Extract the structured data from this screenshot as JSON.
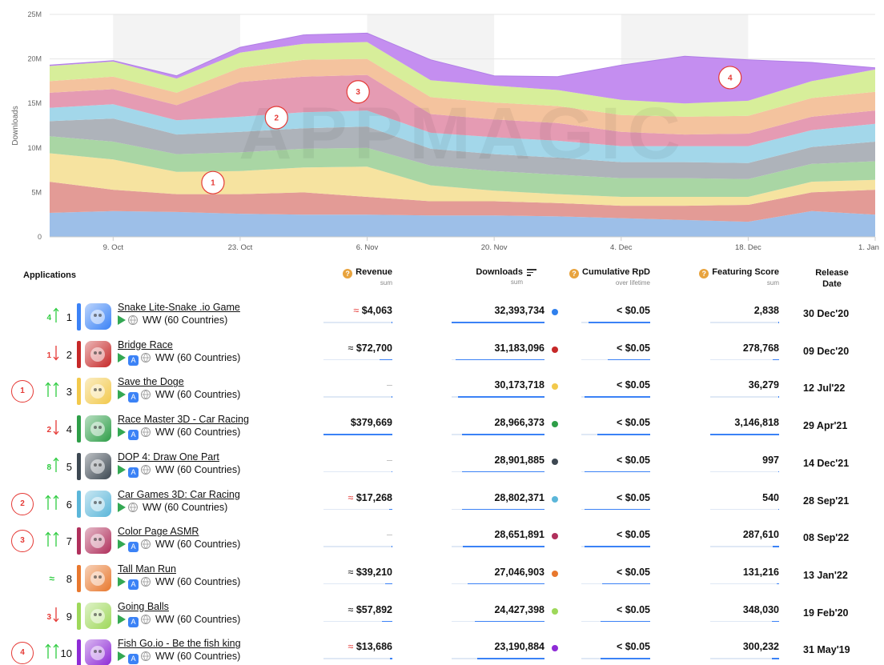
{
  "chart_data": {
    "type": "area",
    "ylabel": "Downloads",
    "y_ticks": [
      "0",
      "5M",
      "10M",
      "15M",
      "20M",
      "25M"
    ],
    "ylim": [
      0,
      25
    ],
    "x_tick_labels": [
      "9. Oct",
      "23. Oct",
      "6. Nov",
      "20. Nov",
      "4. Dec",
      "18. Dec",
      "1. Jan"
    ],
    "x_points": [
      "2 Oct",
      "9 Oct",
      "16 Oct",
      "23 Oct",
      "30 Oct",
      "6 Nov",
      "13 Nov",
      "20 Nov",
      "27 Nov",
      "4 Dec",
      "11 Dec",
      "18 Dec",
      "25 Dec",
      "1 Jan"
    ],
    "stacked": true,
    "series": [
      {
        "color": "#9dbfe8",
        "values": [
          2.7,
          2.9,
          2.8,
          2.6,
          2.5,
          2.5,
          2.4,
          2.4,
          2.3,
          2.1,
          1.9,
          1.7,
          2.9,
          2.5
        ]
      },
      {
        "color": "#e39b96",
        "values": [
          3.5,
          2.4,
          2.0,
          2.2,
          2.5,
          2.0,
          1.6,
          1.6,
          1.5,
          1.4,
          1.6,
          1.9,
          2.1,
          2.8
        ]
      },
      {
        "color": "#f6e3a0",
        "values": [
          3.2,
          3.4,
          2.5,
          2.6,
          2.8,
          3.4,
          1.8,
          1.2,
          1.0,
          1.0,
          1.0,
          0.9,
          1.2,
          1.1
        ]
      },
      {
        "color": "#a9d6a4",
        "values": [
          1.9,
          2.0,
          2.0,
          2.1,
          2.1,
          2.1,
          2.2,
          2.2,
          2.2,
          2.1,
          2.1,
          2.0,
          2.0,
          2.1
        ]
      },
      {
        "color": "#aeb3ba",
        "values": [
          1.7,
          2.6,
          2.2,
          2.3,
          2.3,
          2.4,
          1.9,
          1.9,
          1.9,
          1.8,
          1.8,
          1.8,
          1.9,
          2.2
        ]
      },
      {
        "color": "#a3d7ea",
        "values": [
          1.5,
          1.6,
          1.6,
          1.7,
          1.8,
          1.8,
          1.8,
          1.9,
          1.9,
          1.8,
          1.8,
          1.9,
          1.9,
          2.0
        ]
      },
      {
        "color": "#e59bb3",
        "values": [
          1.7,
          1.7,
          1.7,
          3.9,
          4.0,
          4.0,
          2.1,
          2.0,
          2.0,
          1.6,
          1.3,
          1.4,
          1.5,
          1.5
        ]
      },
      {
        "color": "#f4c39e",
        "values": [
          1.3,
          1.4,
          1.4,
          1.6,
          1.9,
          1.8,
          1.9,
          1.9,
          1.9,
          1.9,
          2.0,
          2.0,
          2.1,
          2.1
        ]
      },
      {
        "color": "#d7ee9a",
        "values": [
          1.7,
          1.7,
          1.6,
          1.7,
          1.8,
          1.9,
          1.9,
          1.9,
          1.8,
          1.7,
          1.5,
          1.7,
          1.9,
          2.5
        ]
      },
      {
        "color": "#c48ef0",
        "values": [
          0.1,
          0.1,
          0.3,
          0.6,
          1.0,
          1.0,
          2.3,
          1.1,
          1.5,
          3.9,
          5.3,
          4.6,
          2.1,
          0.2
        ]
      }
    ],
    "markers": [
      {
        "label": "1",
        "x": "20 Oct",
        "y": 6.1
      },
      {
        "label": "2",
        "x": "27 Oct",
        "y": 13.4
      },
      {
        "label": "3",
        "x": "5 Nov",
        "y": 16.3
      },
      {
        "label": "4",
        "x": "16 Dec",
        "y": 17.9
      }
    ],
    "watermark": "APPMAGIC"
  },
  "table": {
    "headers": {
      "applications": "Applications",
      "revenue": "Revenue",
      "revenue_sub": "sum",
      "downloads": "Downloads",
      "downloads_sub": "sum",
      "rpd": "Cumulative RpD",
      "rpd_sub": "over lifetime",
      "featuring": "Featuring Score",
      "featuring_sub": "sum",
      "release": "Release Date"
    },
    "help_glyph": "?",
    "rows": [
      {
        "marker": "",
        "delta": "4",
        "delta_dir": "up",
        "rank": "1",
        "color": "#3b82f6",
        "name": "Snake Lite-Snake .io Game",
        "stores": [
          "google-play"
        ],
        "region": "WW (60 Countries)",
        "revenue_prefix": "≈",
        "revenue": "$4,063",
        "revenue_estimated": true,
        "revenue_fill": 0.01,
        "downloads": "32,393,734",
        "downloads_fill": 1.0,
        "dot_color": "#2f80ed",
        "rpd": "< $0.05",
        "rpd_fill": 0.9,
        "featuring": "2,838",
        "featuring_fill": 0.01,
        "release": "30 Dec'20"
      },
      {
        "marker": "",
        "delta": "1",
        "delta_dir": "down",
        "rank": "2",
        "color": "#c62828",
        "name": "Bridge Race",
        "stores": [
          "google-play",
          "app-store"
        ],
        "region": "WW (60 Countries)",
        "revenue_prefix": "≈",
        "revenue": "$72,700",
        "revenue_estimated": false,
        "revenue_fill": 0.19,
        "downloads": "31,183,096",
        "downloads_fill": 0.96,
        "dot_color": "#c62828",
        "rpd": "< $0.05",
        "rpd_fill": 0.62,
        "featuring": "278,768",
        "featuring_fill": 0.09,
        "release": "09 Dec'20"
      },
      {
        "marker": "1",
        "delta": "",
        "delta_dir": "up",
        "rank": "3",
        "color": "#f2c94c",
        "name": "Save the Doge",
        "stores": [
          "google-play",
          "app-store"
        ],
        "region": "WW (60 Countries)",
        "revenue_prefix": "",
        "revenue": "–",
        "revenue_estimated": false,
        "revenue_fill": 0,
        "downloads": "30,173,718",
        "downloads_fill": 0.93,
        "dot_color": "#f2c94c",
        "rpd": "< $0.05",
        "rpd_fill": 0.95,
        "featuring": "36,279",
        "featuring_fill": 0.01,
        "release": "12 Jul'22"
      },
      {
        "marker": "",
        "delta": "2",
        "delta_dir": "down",
        "rank": "4",
        "color": "#2e9e48",
        "name": "Race Master 3D - Car Racing",
        "stores": [
          "google-play",
          "app-store"
        ],
        "region": "WW (60 Countries)",
        "revenue_prefix": "",
        "revenue": "$379,669",
        "revenue_estimated": false,
        "revenue_fill": 1.0,
        "downloads": "28,966,373",
        "downloads_fill": 0.89,
        "dot_color": "#2e9e48",
        "rpd": "< $0.05",
        "rpd_fill": 0.77,
        "featuring": "3,146,818",
        "featuring_fill": 1.0,
        "release": "29 Apr'21"
      },
      {
        "marker": "",
        "delta": "8",
        "delta_dir": "up",
        "rank": "5",
        "color": "#3d4852",
        "name": "DOP 4: Draw One Part",
        "stores": [
          "google-play",
          "app-store"
        ],
        "region": "WW (60 Countries)",
        "revenue_prefix": "",
        "revenue": "–",
        "revenue_estimated": false,
        "revenue_fill": 0,
        "downloads": "28,901,885",
        "downloads_fill": 0.89,
        "dot_color": "#3d4852",
        "rpd": "< $0.05",
        "rpd_fill": 0.95,
        "featuring": "997",
        "featuring_fill": 0.005,
        "release": "14 Dec'21"
      },
      {
        "marker": "2",
        "delta": "",
        "delta_dir": "up",
        "rank": "6",
        "color": "#5bb6d9",
        "name": "Car Games 3D: Car Racing",
        "stores": [
          "google-play"
        ],
        "region": "WW (60 Countries)",
        "revenue_prefix": "≈",
        "revenue": "$17,268",
        "revenue_estimated": true,
        "revenue_fill": 0.05,
        "downloads": "28,802,371",
        "downloads_fill": 0.89,
        "dot_color": "#5bb6d9",
        "rpd": "< $0.05",
        "rpd_fill": 0.95,
        "featuring": "540",
        "featuring_fill": 0.005,
        "release": "28 Sep'21"
      },
      {
        "marker": "3",
        "delta": "",
        "delta_dir": "up",
        "rank": "7",
        "color": "#b0305c",
        "name": "Color Page ASMR",
        "stores": [
          "google-play",
          "app-store"
        ],
        "region": "WW (60 Countries)",
        "revenue_prefix": "",
        "revenue": "–",
        "revenue_estimated": false,
        "revenue_fill": 0,
        "downloads": "28,651,891",
        "downloads_fill": 0.88,
        "dot_color": "#b0305c",
        "rpd": "< $0.05",
        "rpd_fill": 0.95,
        "featuring": "287,610",
        "featuring_fill": 0.09,
        "release": "08 Sep'22"
      },
      {
        "marker": "",
        "delta": "≈",
        "delta_dir": "same",
        "rank": "8",
        "color": "#e8782e",
        "name": "Tall Man Run",
        "stores": [
          "google-play",
          "app-store"
        ],
        "region": "WW (60 Countries)",
        "revenue_prefix": "≈",
        "revenue": "$39,210",
        "revenue_estimated": false,
        "revenue_fill": 0.1,
        "downloads": "27,046,903",
        "downloads_fill": 0.83,
        "dot_color": "#e8782e",
        "rpd": "< $0.05",
        "rpd_fill": 0.7,
        "featuring": "131,216",
        "featuring_fill": 0.04,
        "release": "13 Jan'22"
      },
      {
        "marker": "",
        "delta": "3",
        "delta_dir": "down",
        "rank": "9",
        "color": "#9ed85a",
        "name": "Going Balls",
        "stores": [
          "google-play",
          "app-store"
        ],
        "region": "WW (60 Countries)",
        "revenue_prefix": "≈",
        "revenue": "$57,892",
        "revenue_estimated": false,
        "revenue_fill": 0.15,
        "downloads": "24,427,398",
        "downloads_fill": 0.75,
        "dot_color": "#9ed85a",
        "rpd": "< $0.05",
        "rpd_fill": 0.72,
        "featuring": "348,030",
        "featuring_fill": 0.11,
        "release": "19 Feb'20"
      },
      {
        "marker": "4",
        "delta": "",
        "delta_dir": "up",
        "rank": "10",
        "color": "#8e2bd6",
        "name": "Fish Go.io - Be the fish king",
        "stores": [
          "google-play",
          "app-store"
        ],
        "region": "WW (60 Countries)",
        "revenue_prefix": "≈",
        "revenue": "$13,686",
        "revenue_estimated": true,
        "revenue_fill": 0.04,
        "downloads": "23,190,884",
        "downloads_fill": 0.72,
        "dot_color": "#8e2bd6",
        "rpd": "< $0.05",
        "rpd_fill": 0.72,
        "featuring": "300,232",
        "featuring_fill": 0.1,
        "release": "31 May'19"
      }
    ]
  }
}
